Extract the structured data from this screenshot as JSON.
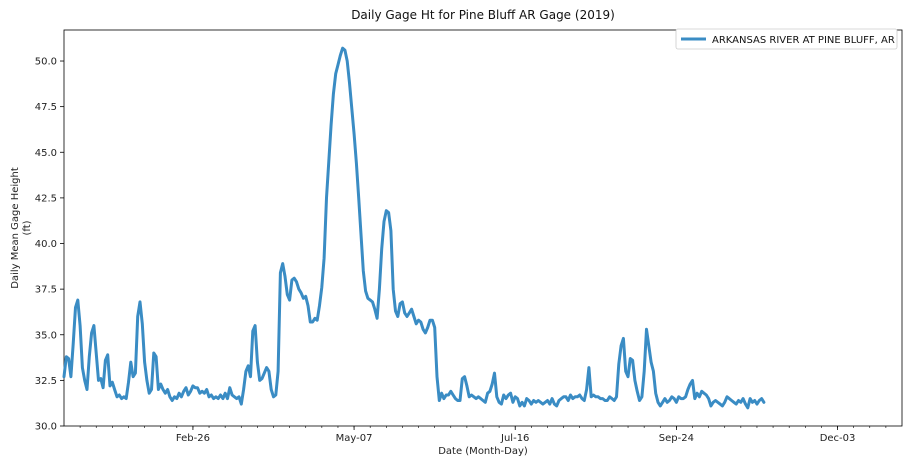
{
  "chart_data": {
    "type": "line",
    "title": "Daily Gage Ht for Pine Bluff AR Gage (2019)",
    "xlabel": "Date (Month-Day)",
    "ylabel_line1": "Daily Mean Gage Height",
    "ylabel_line2": "(ft)",
    "xlim": [
      1,
      365
    ],
    "ylim": [
      30.0,
      51.7
    ],
    "xticks": [
      {
        "day": 57,
        "label": "Feb-26"
      },
      {
        "day": 127,
        "label": "May-07"
      },
      {
        "day": 197,
        "label": "Jul-16"
      },
      {
        "day": 267,
        "label": "Sep-24"
      },
      {
        "day": 337,
        "label": "Dec-03"
      }
    ],
    "yticks": [
      {
        "value": 30.0,
        "label": "30.0"
      },
      {
        "value": 32.5,
        "label": "32.5"
      },
      {
        "value": 35.0,
        "label": "35.0"
      },
      {
        "value": 37.5,
        "label": "37.5"
      },
      {
        "value": 40.0,
        "label": "40.0"
      },
      {
        "value": 42.5,
        "label": "42.5"
      },
      {
        "value": 45.0,
        "label": "45.0"
      },
      {
        "value": 47.5,
        "label": "47.5"
      },
      {
        "value": 50.0,
        "label": "50.0"
      }
    ],
    "legend_position": "top-right",
    "grid": false,
    "series": [
      {
        "name": "ARKANSAS RIVER AT PINE BLUFF, AR",
        "color": "#3a8cc4",
        "points": [
          [
            1,
            32.7
          ],
          [
            2,
            33.8
          ],
          [
            3,
            33.7
          ],
          [
            4,
            32.7
          ],
          [
            5,
            34.5
          ],
          [
            6,
            36.5
          ],
          [
            7,
            36.9
          ],
          [
            8,
            35.5
          ],
          [
            9,
            33.2
          ],
          [
            10,
            32.5
          ],
          [
            11,
            32.0
          ],
          [
            12,
            33.8
          ],
          [
            13,
            35.1
          ],
          [
            14,
            35.5
          ],
          [
            15,
            34.0
          ],
          [
            16,
            32.5
          ],
          [
            17,
            32.6
          ],
          [
            18,
            32.1
          ],
          [
            19,
            33.6
          ],
          [
            20,
            33.9
          ],
          [
            21,
            32.2
          ],
          [
            22,
            32.4
          ],
          [
            23,
            32.0
          ],
          [
            24,
            31.6
          ],
          [
            25,
            31.7
          ],
          [
            26,
            31.5
          ],
          [
            27,
            31.6
          ],
          [
            28,
            31.5
          ],
          [
            29,
            32.4
          ],
          [
            30,
            33.5
          ],
          [
            31,
            32.7
          ],
          [
            32,
            32.9
          ],
          [
            33,
            36.0
          ],
          [
            34,
            36.8
          ],
          [
            35,
            35.6
          ],
          [
            36,
            33.5
          ],
          [
            37,
            32.5
          ],
          [
            38,
            31.8
          ],
          [
            39,
            32.0
          ],
          [
            40,
            34.0
          ],
          [
            41,
            33.8
          ],
          [
            42,
            32.0
          ],
          [
            43,
            32.3
          ],
          [
            44,
            32.0
          ],
          [
            45,
            31.8
          ],
          [
            46,
            32.0
          ],
          [
            47,
            31.6
          ],
          [
            48,
            31.4
          ],
          [
            49,
            31.6
          ],
          [
            50,
            31.5
          ],
          [
            51,
            31.8
          ],
          [
            52,
            31.6
          ],
          [
            53,
            31.9
          ],
          [
            54,
            32.1
          ],
          [
            55,
            31.7
          ],
          [
            56,
            31.9
          ],
          [
            57,
            32.2
          ],
          [
            58,
            32.1
          ],
          [
            59,
            32.1
          ],
          [
            60,
            31.8
          ],
          [
            61,
            31.9
          ],
          [
            62,
            31.8
          ],
          [
            63,
            32.0
          ],
          [
            64,
            31.6
          ],
          [
            65,
            31.7
          ],
          [
            66,
            31.5
          ],
          [
            67,
            31.6
          ],
          [
            68,
            31.5
          ],
          [
            69,
            31.7
          ],
          [
            70,
            31.5
          ],
          [
            71,
            31.8
          ],
          [
            72,
            31.5
          ],
          [
            73,
            32.1
          ],
          [
            74,
            31.7
          ],
          [
            75,
            31.6
          ],
          [
            76,
            31.5
          ],
          [
            77,
            31.6
          ],
          [
            78,
            31.2
          ],
          [
            79,
            32.0
          ],
          [
            80,
            33.0
          ],
          [
            81,
            33.3
          ],
          [
            82,
            32.7
          ],
          [
            83,
            35.2
          ],
          [
            84,
            35.5
          ],
          [
            85,
            33.5
          ],
          [
            86,
            32.5
          ],
          [
            87,
            32.6
          ],
          [
            88,
            32.9
          ],
          [
            89,
            33.2
          ],
          [
            90,
            33.0
          ],
          [
            91,
            32.0
          ],
          [
            92,
            31.6
          ],
          [
            93,
            31.7
          ],
          [
            94,
            33.0
          ],
          [
            95,
            38.4
          ],
          [
            96,
            38.9
          ],
          [
            97,
            38.2
          ],
          [
            98,
            37.2
          ],
          [
            99,
            36.9
          ],
          [
            100,
            38.0
          ],
          [
            101,
            38.1
          ],
          [
            102,
            37.9
          ],
          [
            103,
            37.5
          ],
          [
            104,
            37.3
          ],
          [
            105,
            37.0
          ],
          [
            106,
            37.1
          ],
          [
            107,
            36.6
          ],
          [
            108,
            35.7
          ],
          [
            109,
            35.7
          ],
          [
            110,
            35.9
          ],
          [
            111,
            35.8
          ],
          [
            112,
            36.6
          ],
          [
            113,
            37.6
          ],
          [
            114,
            39.2
          ],
          [
            115,
            42.5
          ],
          [
            116,
            44.5
          ],
          [
            117,
            46.5
          ],
          [
            118,
            48.2
          ],
          [
            119,
            49.3
          ],
          [
            120,
            49.8
          ],
          [
            121,
            50.3
          ],
          [
            122,
            50.7
          ],
          [
            123,
            50.6
          ],
          [
            124,
            50.0
          ],
          [
            125,
            48.8
          ],
          [
            126,
            47.4
          ],
          [
            127,
            46.0
          ],
          [
            128,
            44.4
          ],
          [
            129,
            42.5
          ],
          [
            130,
            40.5
          ],
          [
            131,
            38.5
          ],
          [
            132,
            37.4
          ],
          [
            133,
            37.0
          ],
          [
            134,
            36.9
          ],
          [
            135,
            36.8
          ],
          [
            136,
            36.4
          ],
          [
            137,
            35.9
          ],
          [
            138,
            37.5
          ],
          [
            139,
            39.7
          ],
          [
            140,
            41.2
          ],
          [
            141,
            41.8
          ],
          [
            142,
            41.7
          ],
          [
            143,
            40.7
          ],
          [
            144,
            37.5
          ],
          [
            145,
            36.3
          ],
          [
            146,
            36.0
          ],
          [
            147,
            36.7
          ],
          [
            148,
            36.8
          ],
          [
            149,
            36.2
          ],
          [
            150,
            36.0
          ],
          [
            151,
            36.2
          ],
          [
            152,
            36.4
          ],
          [
            153,
            36.0
          ],
          [
            154,
            35.6
          ],
          [
            155,
            35.8
          ],
          [
            156,
            35.7
          ],
          [
            157,
            35.3
          ],
          [
            158,
            35.1
          ],
          [
            159,
            35.4
          ],
          [
            160,
            35.8
          ],
          [
            161,
            35.8
          ],
          [
            162,
            35.4
          ],
          [
            163,
            32.7
          ],
          [
            164,
            31.4
          ],
          [
            165,
            31.8
          ],
          [
            166,
            31.5
          ],
          [
            167,
            31.7
          ],
          [
            168,
            31.7
          ],
          [
            169,
            31.9
          ],
          [
            170,
            31.7
          ],
          [
            171,
            31.5
          ],
          [
            172,
            31.4
          ],
          [
            173,
            31.4
          ],
          [
            174,
            32.6
          ],
          [
            175,
            32.7
          ],
          [
            176,
            32.2
          ],
          [
            177,
            31.6
          ],
          [
            178,
            31.7
          ],
          [
            179,
            31.6
          ],
          [
            180,
            31.5
          ],
          [
            181,
            31.6
          ],
          [
            182,
            31.5
          ],
          [
            183,
            31.4
          ],
          [
            184,
            31.3
          ],
          [
            185,
            31.8
          ],
          [
            186,
            31.9
          ],
          [
            187,
            32.3
          ],
          [
            188,
            32.9
          ],
          [
            189,
            31.6
          ],
          [
            190,
            31.3
          ],
          [
            191,
            31.2
          ],
          [
            192,
            31.7
          ],
          [
            193,
            31.5
          ],
          [
            194,
            31.7
          ],
          [
            195,
            31.8
          ],
          [
            196,
            31.3
          ],
          [
            197,
            31.6
          ],
          [
            198,
            31.5
          ],
          [
            199,
            31.1
          ],
          [
            200,
            31.3
          ],
          [
            201,
            31.1
          ],
          [
            202,
            31.5
          ],
          [
            203,
            31.4
          ],
          [
            204,
            31.2
          ],
          [
            205,
            31.4
          ],
          [
            206,
            31.3
          ],
          [
            207,
            31.4
          ],
          [
            208,
            31.3
          ],
          [
            209,
            31.2
          ],
          [
            210,
            31.3
          ],
          [
            211,
            31.4
          ],
          [
            212,
            31.2
          ],
          [
            213,
            31.5
          ],
          [
            214,
            31.2
          ],
          [
            215,
            31.1
          ],
          [
            216,
            31.4
          ],
          [
            217,
            31.5
          ],
          [
            218,
            31.6
          ],
          [
            219,
            31.6
          ],
          [
            220,
            31.4
          ],
          [
            221,
            31.7
          ],
          [
            222,
            31.5
          ],
          [
            223,
            31.6
          ],
          [
            224,
            31.6
          ],
          [
            225,
            31.7
          ],
          [
            226,
            31.5
          ],
          [
            227,
            31.4
          ],
          [
            228,
            32.0
          ],
          [
            229,
            33.2
          ],
          [
            230,
            31.6
          ],
          [
            231,
            31.7
          ],
          [
            232,
            31.6
          ],
          [
            233,
            31.6
          ],
          [
            234,
            31.5
          ],
          [
            235,
            31.5
          ],
          [
            236,
            31.4
          ],
          [
            237,
            31.4
          ],
          [
            238,
            31.6
          ],
          [
            239,
            31.5
          ],
          [
            240,
            31.4
          ],
          [
            241,
            31.6
          ],
          [
            242,
            33.4
          ],
          [
            243,
            34.4
          ],
          [
            244,
            34.8
          ],
          [
            245,
            33.0
          ],
          [
            246,
            32.7
          ],
          [
            247,
            33.7
          ],
          [
            248,
            33.6
          ],
          [
            249,
            32.5
          ],
          [
            250,
            31.9
          ],
          [
            251,
            31.4
          ],
          [
            252,
            31.6
          ],
          [
            253,
            33.0
          ],
          [
            254,
            35.3
          ],
          [
            255,
            34.4
          ],
          [
            256,
            33.5
          ],
          [
            257,
            33.0
          ],
          [
            258,
            31.8
          ],
          [
            259,
            31.3
          ],
          [
            260,
            31.1
          ],
          [
            261,
            31.3
          ],
          [
            262,
            31.5
          ],
          [
            263,
            31.3
          ],
          [
            264,
            31.4
          ],
          [
            265,
            31.6
          ],
          [
            266,
            31.5
          ],
          [
            267,
            31.3
          ],
          [
            268,
            31.6
          ],
          [
            269,
            31.5
          ],
          [
            270,
            31.5
          ],
          [
            271,
            31.6
          ],
          [
            272,
            32.0
          ],
          [
            273,
            32.3
          ],
          [
            274,
            32.5
          ],
          [
            275,
            31.5
          ],
          [
            276,
            31.8
          ],
          [
            277,
            31.6
          ],
          [
            278,
            31.9
          ],
          [
            279,
            31.8
          ],
          [
            280,
            31.7
          ],
          [
            281,
            31.5
          ],
          [
            282,
            31.1
          ],
          [
            283,
            31.3
          ],
          [
            284,
            31.4
          ],
          [
            285,
            31.3
          ],
          [
            286,
            31.2
          ],
          [
            287,
            31.1
          ],
          [
            288,
            31.3
          ],
          [
            289,
            31.6
          ],
          [
            290,
            31.5
          ],
          [
            291,
            31.4
          ],
          [
            292,
            31.3
          ],
          [
            293,
            31.2
          ],
          [
            294,
            31.4
          ],
          [
            295,
            31.3
          ],
          [
            296,
            31.5
          ],
          [
            297,
            31.2
          ],
          [
            298,
            31.0
          ],
          [
            299,
            31.5
          ],
          [
            300,
            31.3
          ],
          [
            301,
            31.4
          ],
          [
            302,
            31.2
          ],
          [
            303,
            31.4
          ],
          [
            304,
            31.5
          ],
          [
            305,
            31.3
          ]
        ]
      }
    ]
  }
}
